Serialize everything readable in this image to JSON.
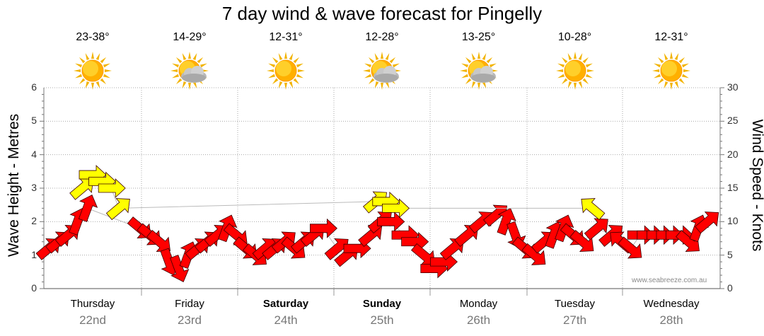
{
  "title": "7 day wind & wave forecast for Pingelly",
  "credit": "www.seabreeze.com.au",
  "colors": {
    "wind_arrow": "#ff0000",
    "wave_arrow": "#ffff00",
    "grid": "#aaaaaa"
  },
  "days": [
    {
      "name": "Thursday",
      "date": "22nd",
      "temp": "23-38°",
      "icon": "sun-icon",
      "bold": false
    },
    {
      "name": "Friday",
      "date": "23rd",
      "temp": "14-29°",
      "icon": "sun-cloud-icon",
      "bold": false
    },
    {
      "name": "Saturday",
      "date": "24th",
      "temp": "12-31°",
      "icon": "sun-icon",
      "bold": true
    },
    {
      "name": "Sunday",
      "date": "25th",
      "temp": "12-28°",
      "icon": "sun-cloud-icon",
      "bold": true
    },
    {
      "name": "Monday",
      "date": "26th",
      "temp": "13-25°",
      "icon": "sun-cloud-icon",
      "bold": false
    },
    {
      "name": "Tuesday",
      "date": "27th",
      "temp": "10-28°",
      "icon": "sun-icon",
      "bold": false
    },
    {
      "name": "Wednesday",
      "date": "28th",
      "temp": "12-31°",
      "icon": "sun-icon",
      "bold": false
    }
  ],
  "chart_data": {
    "type": "scatter",
    "title": "7 day wind & wave forecast for Pingelly",
    "ylabel": "Wave Height - Metres",
    "y2label": "Wind Speed - Knots",
    "ylim": [
      0,
      6
    ],
    "y2lim": [
      0,
      30
    ],
    "yticks": [
      "0",
      "1",
      "2",
      "3",
      "4",
      "5",
      "6"
    ],
    "y2ticks": [
      "0",
      "5",
      "10",
      "15",
      "20",
      "25",
      "30"
    ],
    "x_categories": [
      "Thursday 22nd",
      "Friday 23rd",
      "Saturday 24th",
      "Sunday 25th",
      "Monday 26th",
      "Tuesday 27th",
      "Wednesday 28th"
    ],
    "grid": true,
    "series": [
      {
        "color": "#ff0000",
        "points": [
          {
            "x": 0.05,
            "y": 6,
            "dir": "NE"
          },
          {
            "x": 0.15,
            "y": 7,
            "dir": "NE"
          },
          {
            "x": 0.25,
            "y": 8,
            "dir": "NE"
          },
          {
            "x": 0.35,
            "y": 10,
            "dir": "N"
          },
          {
            "x": 0.45,
            "y": 12,
            "dir": "N"
          },
          {
            "x": 1.0,
            "y": 9,
            "dir": "SE"
          },
          {
            "x": 1.1,
            "y": 8,
            "dir": "SE"
          },
          {
            "x": 1.2,
            "y": 7,
            "dir": "SE"
          },
          {
            "x": 1.3,
            "y": 4,
            "dir": "S"
          },
          {
            "x": 1.4,
            "y": 3,
            "dir": "S"
          },
          {
            "x": 1.5,
            "y": 5,
            "dir": "N"
          },
          {
            "x": 1.6,
            "y": 6,
            "dir": "NE"
          },
          {
            "x": 1.7,
            "y": 7,
            "dir": "NE"
          },
          {
            "x": 1.8,
            "y": 8,
            "dir": "NE"
          },
          {
            "x": 1.9,
            "y": 9,
            "dir": "N"
          },
          {
            "x": 2.0,
            "y": 8,
            "dir": "SE"
          },
          {
            "x": 2.1,
            "y": 6,
            "dir": "SE"
          },
          {
            "x": 2.2,
            "y": 5,
            "dir": "SE"
          },
          {
            "x": 2.3,
            "y": 6,
            "dir": "NE"
          },
          {
            "x": 2.4,
            "y": 6,
            "dir": "NE"
          },
          {
            "x": 2.5,
            "y": 7,
            "dir": "NE"
          },
          {
            "x": 2.6,
            "y": 6,
            "dir": "SE"
          },
          {
            "x": 2.7,
            "y": 7,
            "dir": "NE"
          },
          {
            "x": 2.8,
            "y": 8,
            "dir": "NE"
          },
          {
            "x": 2.9,
            "y": 9,
            "dir": "E"
          },
          {
            "x": 3.05,
            "y": 6,
            "dir": "NE"
          },
          {
            "x": 3.15,
            "y": 5,
            "dir": "NE"
          },
          {
            "x": 3.25,
            "y": 6,
            "dir": "E"
          },
          {
            "x": 3.4,
            "y": 8,
            "dir": "NE"
          },
          {
            "x": 3.5,
            "y": 10,
            "dir": "NE"
          },
          {
            "x": 3.6,
            "y": 10,
            "dir": "E"
          },
          {
            "x": 3.75,
            "y": 8,
            "dir": "E"
          },
          {
            "x": 3.85,
            "y": 7,
            "dir": "E"
          },
          {
            "x": 3.95,
            "y": 5,
            "dir": "SE"
          },
          {
            "x": 4.05,
            "y": 3,
            "dir": "E"
          },
          {
            "x": 4.15,
            "y": 4,
            "dir": "E"
          },
          {
            "x": 4.25,
            "y": 6,
            "dir": "NE"
          },
          {
            "x": 4.4,
            "y": 8,
            "dir": "NE"
          },
          {
            "x": 4.55,
            "y": 10,
            "dir": "NE"
          },
          {
            "x": 4.7,
            "y": 11,
            "dir": "NE"
          },
          {
            "x": 4.8,
            "y": 10,
            "dir": "N"
          },
          {
            "x": 4.9,
            "y": 8,
            "dir": "S"
          },
          {
            "x": 5.0,
            "y": 6,
            "dir": "SE"
          },
          {
            "x": 5.1,
            "y": 5,
            "dir": "SE"
          },
          {
            "x": 5.2,
            "y": 7,
            "dir": "NE"
          },
          {
            "x": 5.3,
            "y": 8,
            "dir": "N"
          },
          {
            "x": 5.4,
            "y": 9,
            "dir": "N"
          },
          {
            "x": 5.5,
            "y": 8,
            "dir": "SE"
          },
          {
            "x": 5.6,
            "y": 7,
            "dir": "SE"
          },
          {
            "x": 5.75,
            "y": 9,
            "dir": "NE"
          },
          {
            "x": 5.9,
            "y": 8,
            "dir": "NE"
          },
          {
            "x": 6.0,
            "y": 7,
            "dir": "NW"
          },
          {
            "x": 6.1,
            "y": 6,
            "dir": "SE"
          },
          {
            "x": 6.2,
            "y": 8,
            "dir": "E"
          },
          {
            "x": 6.3,
            "y": 8,
            "dir": "E"
          },
          {
            "x": 6.4,
            "y": 8,
            "dir": "E"
          },
          {
            "x": 6.5,
            "y": 8,
            "dir": "E"
          },
          {
            "x": 6.6,
            "y": 8,
            "dir": "E"
          },
          {
            "x": 6.7,
            "y": 7,
            "dir": "SE"
          },
          {
            "x": 6.8,
            "y": 9,
            "dir": "N"
          },
          {
            "x": 6.9,
            "y": 10,
            "dir": "NE"
          }
        ]
      },
      {
        "color": "#ffff00",
        "points": [
          {
            "x": 0.4,
            "y": 15,
            "dir": "NE"
          },
          {
            "x": 0.5,
            "y": 17,
            "dir": "E"
          },
          {
            "x": 0.6,
            "y": 16,
            "dir": "E"
          },
          {
            "x": 0.7,
            "y": 15,
            "dir": "E"
          },
          {
            "x": 0.78,
            "y": 12,
            "dir": "NE"
          },
          {
            "x": 3.45,
            "y": 13,
            "dir": "NE"
          },
          {
            "x": 3.55,
            "y": 13,
            "dir": "E"
          },
          {
            "x": 3.65,
            "y": 12,
            "dir": "E"
          },
          {
            "x": 5.7,
            "y": 12,
            "dir": "NW"
          }
        ]
      }
    ]
  }
}
